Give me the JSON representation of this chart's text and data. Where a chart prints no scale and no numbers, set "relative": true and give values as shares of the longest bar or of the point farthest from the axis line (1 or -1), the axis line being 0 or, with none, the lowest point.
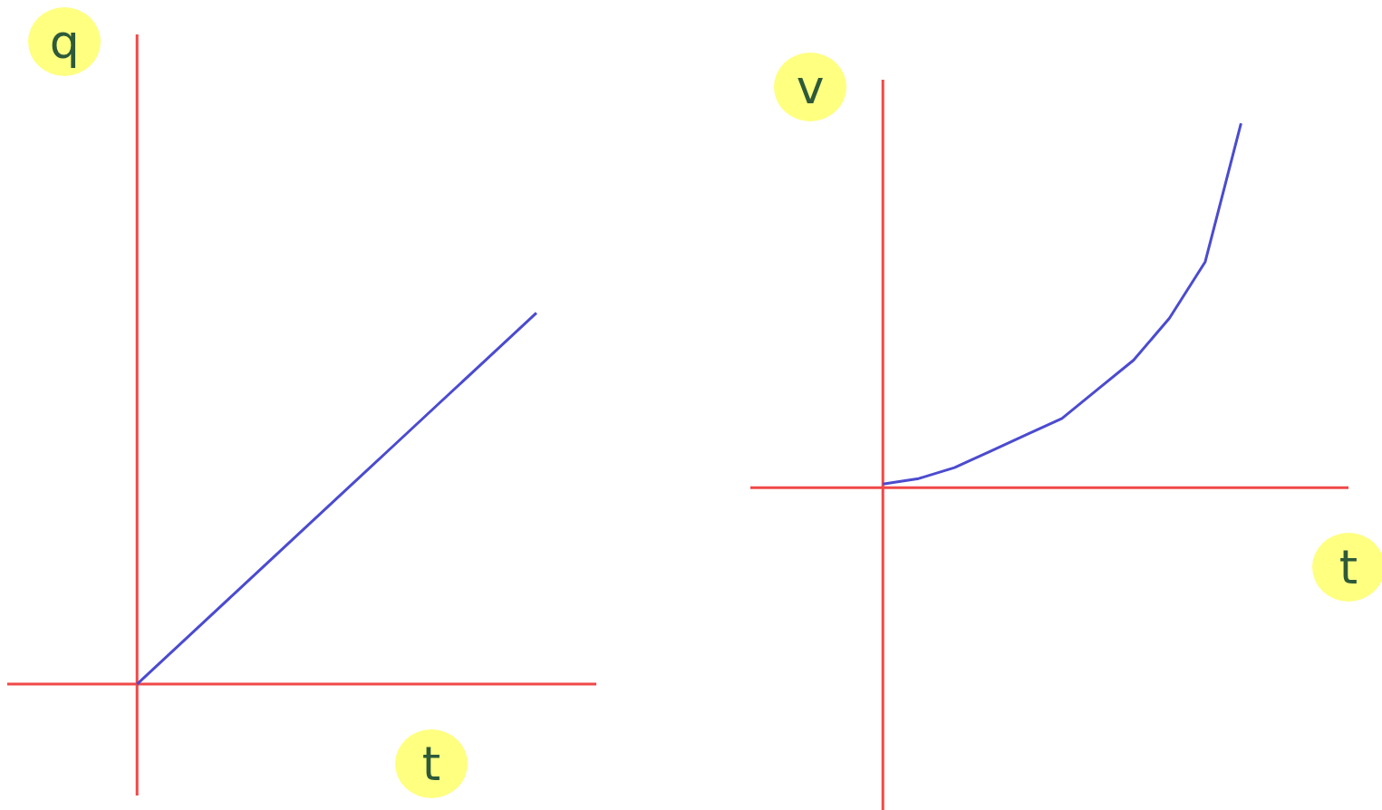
{
  "chart_data": [
    {
      "type": "line",
      "relative": true,
      "xlabel": "t",
      "ylabel": "q",
      "categories": [
        null,
        null,
        null,
        null,
        null,
        null,
        null,
        null,
        null
      ],
      "series": [
        {
          "color": "#4b4bd0",
          "values": [
            0,
            0.125,
            0.25,
            0.375,
            0.5,
            0.625,
            0.75,
            0.875,
            1
          ]
        }
      ]
    },
    {
      "type": "line",
      "relative": true,
      "xlabel": "t",
      "ylabel": "v",
      "categories": [
        null,
        null,
        null,
        null,
        null,
        null,
        null,
        null,
        null,
        null,
        null
      ],
      "series": [
        {
          "color": "#4b4bd0",
          "values": [
            0.01,
            0.025,
            0.055,
            0.1,
            0.145,
            0.19,
            0.27,
            0.35,
            0.465,
            0.62,
            1
          ]
        }
      ]
    }
  ]
}
